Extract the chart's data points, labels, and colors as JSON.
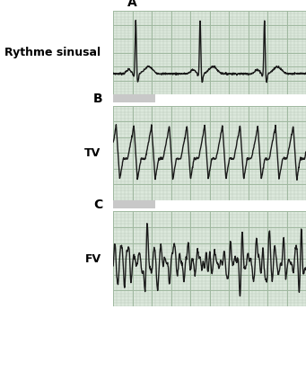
{
  "panel_labels": [
    "A",
    "B",
    "C"
  ],
  "row_labels": [
    "Rythme sinusal",
    "TV",
    "FV"
  ],
  "background_color": "#ffffff",
  "grid_minor_color": "#b8c8b8",
  "grid_major_color": "#a0b8a0",
  "ecg_color": "#1a1a1a",
  "panel_bg": "#dce8dc",
  "sep_color": "#c8c8c8",
  "label_fontsize": 9,
  "panel_label_fontsize": 10,
  "fig_width": 3.41,
  "fig_height": 4.13,
  "dpi": 100
}
